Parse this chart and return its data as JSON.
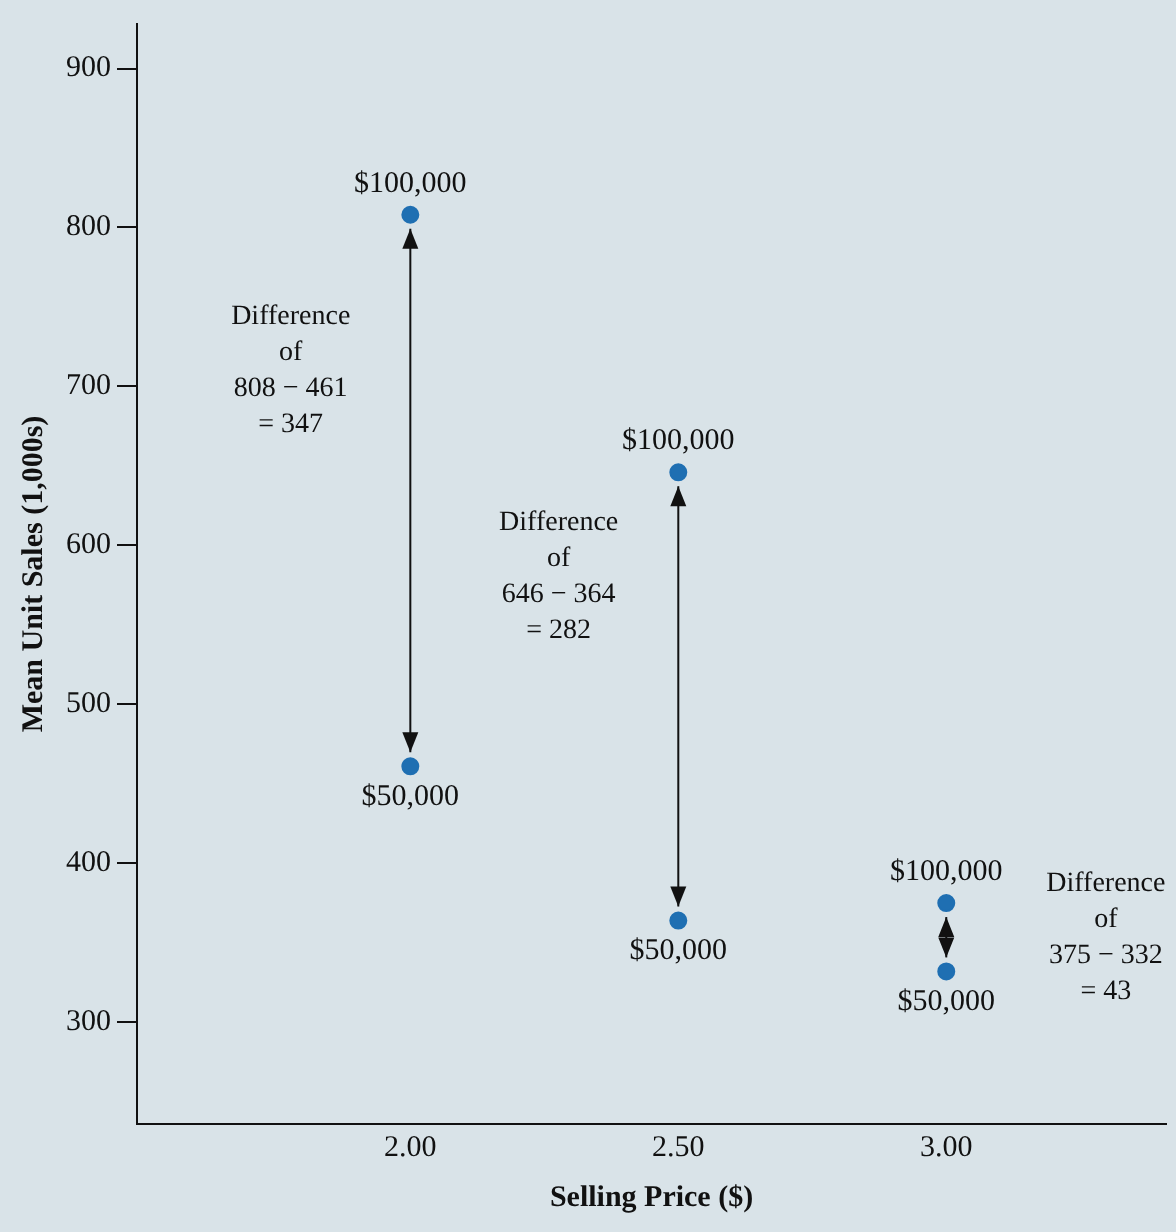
{
  "chart_data": {
    "type": "scatter",
    "xlabel": "Selling Price ($)",
    "ylabel": "Mean Unit Sales (1,000s)",
    "x": [
      2,
      2.5,
      3
    ],
    "series": [
      {
        "name": "$100,000",
        "color": "#1f6fb2",
        "values": [
          808,
          646,
          375
        ]
      },
      {
        "name": "$50,000",
        "color": "#1f6fb2",
        "values": [
          461,
          364,
          332
        ]
      }
    ],
    "xlim": [
      1.49,
      3.41
    ],
    "xticks": [
      {
        "value": 2,
        "label": "2.00"
      },
      {
        "value": 2.5,
        "label": "2.50"
      },
      {
        "value": 3,
        "label": "3.00"
      }
    ],
    "ylim": [
      236,
      928
    ],
    "yticks": [
      300,
      400,
      500,
      600,
      700,
      800,
      900
    ],
    "grid": false,
    "legend": false,
    "marker": "circle",
    "annotations": [
      "Difference\nof\n808 − 461\n= 347",
      "Difference\nof\n646 − 364\n= 282",
      "Difference\nof\n375 − 332\n= 43"
    ]
  }
}
